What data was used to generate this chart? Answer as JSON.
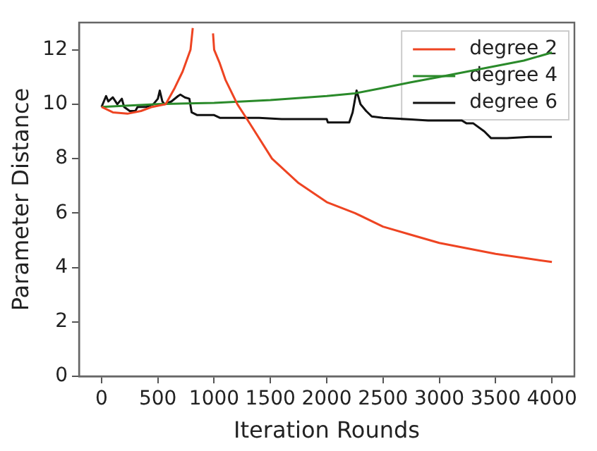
{
  "chart_data": {
    "type": "line",
    "xlabel": "Iteration Rounds",
    "ylabel": "Parameter Distance",
    "xlim": [
      -200,
      4200
    ],
    "ylim": [
      0,
      13
    ],
    "xticks": [
      0,
      500,
      1000,
      1500,
      2000,
      2500,
      3000,
      3500,
      4000
    ],
    "yticks": [
      0,
      2,
      4,
      6,
      8,
      10,
      12
    ],
    "grid": false,
    "legend": "top right",
    "marker": "none",
    "line_style": "solid",
    "series": [
      {
        "name": "degree 2",
        "color": "#ee4422",
        "x": [
          0,
          100,
          230,
          350,
          450,
          570,
          650,
          720,
          790,
          810,
          900,
          990,
          1000,
          1050,
          1100,
          1206,
          1300,
          1514,
          1750,
          2000,
          2250,
          2500,
          2750,
          3000,
          3250,
          3500,
          3750,
          4000
        ],
        "values": [
          9.9,
          9.7,
          9.65,
          9.75,
          9.9,
          10.0,
          10.6,
          11.2,
          12.0,
          12.8,
          null,
          12.6,
          12.0,
          11.5,
          10.9,
          10.0,
          9.4,
          8.0,
          7.1,
          6.4,
          6.0,
          5.5,
          5.2,
          4.9,
          4.7,
          4.5,
          4.35,
          4.2
        ]
      },
      {
        "name": "degree 4",
        "color": "#2a8a2a",
        "x": [
          0,
          250,
          500,
          1000,
          1500,
          2000,
          2250,
          2500,
          2740,
          3000,
          3250,
          3500,
          3750,
          4000
        ],
        "values": [
          9.9,
          9.95,
          10.0,
          10.05,
          10.15,
          10.3,
          10.4,
          10.6,
          10.8,
          11.0,
          11.2,
          11.4,
          11.6,
          11.9
        ]
      },
      {
        "name": "degree 6",
        "color": "#111111",
        "x": [
          0,
          40,
          60,
          100,
          140,
          180,
          200,
          250,
          300,
          320,
          400,
          460,
          500,
          517,
          540,
          560,
          620,
          680,
          700,
          740,
          780,
          800,
          850,
          1000,
          1050,
          1200,
          1400,
          1600,
          1800,
          2000,
          2010,
          2200,
          2230,
          2265,
          2300,
          2350,
          2400,
          2500,
          2700,
          2900,
          3200,
          3240,
          3300,
          3400,
          3460,
          3600,
          3800,
          4000
        ],
        "values": [
          9.9,
          10.3,
          10.1,
          10.25,
          10.0,
          10.2,
          9.9,
          9.75,
          9.75,
          9.9,
          9.9,
          10.0,
          10.2,
          10.5,
          10.1,
          10.0,
          10.1,
          10.3,
          10.35,
          10.25,
          10.2,
          9.7,
          9.6,
          9.6,
          9.5,
          9.5,
          9.5,
          9.45,
          9.45,
          9.45,
          9.33,
          9.33,
          9.7,
          10.5,
          10.0,
          9.75,
          9.55,
          9.5,
          9.45,
          9.4,
          9.4,
          9.3,
          9.3,
          9.0,
          8.75,
          8.75,
          8.8,
          8.8
        ]
      }
    ]
  }
}
